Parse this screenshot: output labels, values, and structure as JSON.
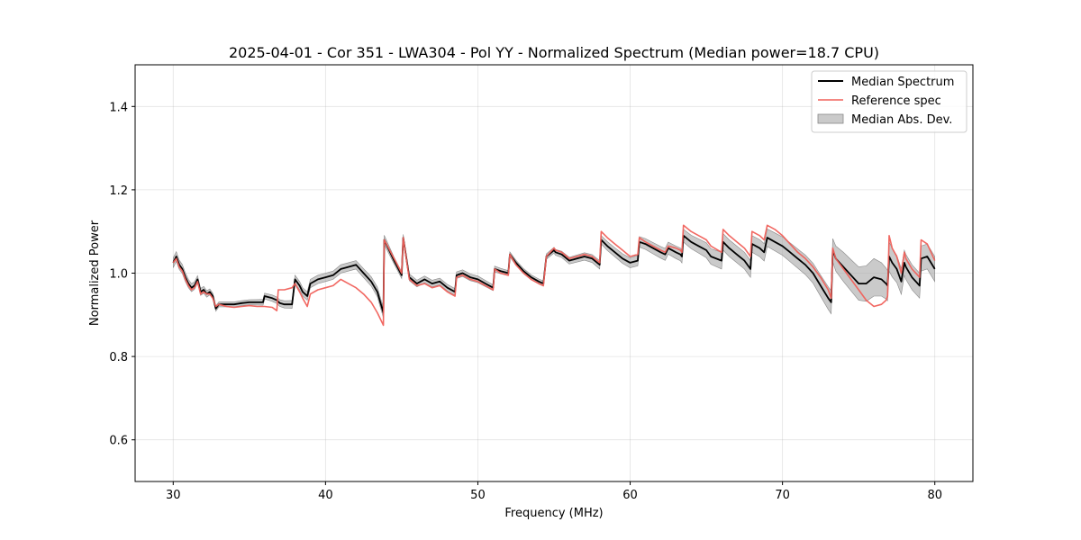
{
  "chart_data": {
    "type": "line",
    "title": "2025-04-01 - Cor 351 - LWA304 - Pol YY - Normalized Spectrum (Median power=18.7 CPU)",
    "xlabel": "Frequency (MHz)",
    "ylabel": "Normalized Power",
    "xlim": [
      27.5,
      82.5
    ],
    "ylim": [
      0.5,
      1.5
    ],
    "xticks": [
      30,
      40,
      50,
      60,
      70,
      80
    ],
    "yticks": [
      0.6,
      0.8,
      1.0,
      1.2,
      1.4
    ],
    "xtick_labels": [
      "30",
      "40",
      "50",
      "60",
      "70",
      "80"
    ],
    "ytick_labels": [
      "0.6",
      "0.8",
      "1.0",
      "1.2",
      "1.4"
    ],
    "grid": true,
    "legend_position": "top-right",
    "colors": {
      "median": "#000000",
      "reference": "#f0605a",
      "mad": "#a6a6a6"
    },
    "series": [
      {
        "name": "Median Spectrum",
        "x": [
          30.0,
          30.2,
          30.4,
          30.6,
          30.8,
          31.0,
          31.2,
          31.4,
          31.6,
          31.8,
          32.0,
          32.2,
          32.4,
          32.6,
          32.8,
          33.0,
          33.5,
          34.0,
          34.5,
          35.0,
          35.5,
          35.9,
          36.0,
          36.5,
          36.8,
          37.0,
          37.3,
          37.6,
          37.8,
          38.0,
          38.3,
          38.5,
          38.8,
          39.0,
          39.5,
          40.0,
          40.5,
          41.0,
          41.5,
          42.0,
          42.5,
          43.0,
          43.4,
          43.6,
          43.8,
          43.85,
          44.5,
          45.0,
          45.1,
          45.5,
          46.0,
          46.5,
          47.0,
          47.5,
          48.0,
          48.5,
          48.6,
          49.0,
          49.5,
          50.0,
          50.5,
          51.0,
          51.1,
          51.5,
          52.0,
          52.1,
          52.5,
          53.0,
          53.5,
          54.0,
          54.3,
          54.5,
          55.0,
          55.1,
          55.5,
          56.0,
          56.5,
          57.0,
          57.5,
          58.0,
          58.1,
          58.5,
          59.0,
          59.5,
          60.0,
          60.5,
          60.6,
          61.0,
          61.5,
          62.0,
          62.3,
          62.5,
          63.0,
          63.3,
          63.4,
          63.5,
          64.0,
          64.5,
          65.0,
          65.3,
          66.0,
          66.1,
          66.5,
          67.0,
          67.5,
          67.9,
          68.0,
          68.5,
          68.8,
          69.0,
          69.5,
          70.0,
          70.5,
          71.0,
          71.5,
          72.0,
          72.5,
          73.0,
          73.2,
          73.3,
          73.5,
          74.0,
          74.5,
          75.0,
          75.5,
          76.0,
          76.5,
          76.8,
          76.9,
          77.0,
          77.2,
          77.5,
          77.8,
          78.0,
          78.1,
          78.5,
          79.0,
          79.1,
          79.5,
          80.0
        ],
        "values": [
          1.025,
          1.04,
          1.02,
          1.01,
          0.99,
          0.975,
          0.965,
          0.97,
          0.985,
          0.955,
          0.96,
          0.95,
          0.955,
          0.945,
          0.915,
          0.925,
          0.925,
          0.925,
          0.928,
          0.93,
          0.93,
          0.93,
          0.945,
          0.94,
          0.935,
          0.928,
          0.925,
          0.925,
          0.925,
          0.985,
          0.97,
          0.955,
          0.945,
          0.975,
          0.985,
          0.99,
          0.995,
          1.01,
          1.015,
          1.02,
          1.0,
          0.98,
          0.955,
          0.93,
          0.905,
          1.08,
          1.03,
          0.995,
          1.085,
          0.99,
          0.975,
          0.985,
          0.975,
          0.98,
          0.965,
          0.955,
          0.995,
          1.0,
          0.99,
          0.985,
          0.975,
          0.965,
          1.01,
          1.005,
          1.0,
          1.045,
          1.025,
          1.005,
          0.99,
          0.98,
          0.975,
          1.04,
          1.055,
          1.05,
          1.045,
          1.03,
          1.035,
          1.04,
          1.035,
          1.02,
          1.08,
          1.065,
          1.05,
          1.035,
          1.025,
          1.03,
          1.075,
          1.07,
          1.06,
          1.05,
          1.045,
          1.06,
          1.05,
          1.045,
          1.04,
          1.09,
          1.075,
          1.065,
          1.055,
          1.04,
          1.03,
          1.075,
          1.06,
          1.045,
          1.03,
          1.01,
          1.07,
          1.06,
          1.05,
          1.085,
          1.075,
          1.065,
          1.05,
          1.035,
          1.02,
          1.0,
          0.97,
          0.94,
          0.93,
          1.055,
          1.035,
          1.015,
          0.995,
          0.975,
          0.975,
          0.99,
          0.985,
          0.975,
          0.97,
          1.04,
          1.025,
          1.01,
          0.98,
          1.025,
          1.015,
          0.99,
          0.97,
          1.035,
          1.04,
          1.01
        ]
      },
      {
        "name": "Reference spec",
        "x": [
          30.0,
          30.2,
          30.4,
          30.6,
          30.8,
          31.0,
          31.2,
          31.4,
          31.6,
          31.8,
          32.0,
          32.2,
          32.4,
          32.6,
          32.8,
          33.0,
          33.5,
          34.0,
          34.5,
          35.0,
          35.5,
          36.0,
          36.5,
          36.8,
          36.9,
          37.3,
          37.8,
          38.0,
          38.3,
          38.5,
          38.8,
          39.0,
          39.5,
          40.0,
          40.5,
          41.0,
          41.5,
          42.0,
          42.5,
          43.0,
          43.4,
          43.8,
          43.85,
          44.5,
          45.0,
          45.1,
          45.5,
          46.0,
          46.5,
          47.0,
          47.5,
          48.0,
          48.5,
          48.6,
          49.0,
          49.5,
          50.0,
          50.5,
          51.0,
          51.1,
          51.5,
          52.0,
          52.1,
          52.5,
          53.0,
          53.5,
          54.0,
          54.3,
          54.5,
          55.0,
          55.1,
          55.5,
          56.0,
          56.5,
          57.0,
          57.5,
          58.0,
          58.1,
          58.5,
          59.0,
          59.5,
          60.0,
          60.5,
          60.6,
          61.0,
          61.5,
          62.0,
          62.3,
          62.5,
          63.0,
          63.3,
          63.4,
          63.5,
          64.0,
          64.5,
          65.0,
          65.3,
          66.0,
          66.1,
          66.5,
          67.0,
          67.5,
          67.9,
          68.0,
          68.5,
          68.8,
          69.0,
          69.5,
          70.0,
          70.5,
          71.0,
          71.5,
          72.0,
          72.5,
          73.0,
          73.2,
          73.3,
          73.5,
          74.0,
          74.5,
          75.0,
          75.5,
          76.0,
          76.5,
          76.8,
          76.9,
          77.0,
          77.2,
          77.5,
          77.8,
          78.0,
          78.1,
          78.5,
          79.0,
          79.1,
          79.5,
          80.0
        ],
        "values": [
          1.025,
          1.035,
          1.015,
          1.005,
          0.985,
          0.97,
          0.96,
          0.965,
          0.98,
          0.95,
          0.955,
          0.95,
          0.95,
          0.94,
          0.92,
          0.925,
          0.92,
          0.918,
          0.92,
          0.922,
          0.92,
          0.92,
          0.918,
          0.91,
          0.96,
          0.96,
          0.965,
          0.975,
          0.955,
          0.94,
          0.92,
          0.95,
          0.96,
          0.965,
          0.97,
          0.985,
          0.975,
          0.965,
          0.95,
          0.93,
          0.905,
          0.875,
          1.08,
          1.035,
          1.0,
          1.085,
          0.985,
          0.97,
          0.975,
          0.965,
          0.97,
          0.955,
          0.945,
          0.99,
          0.995,
          0.985,
          0.98,
          0.97,
          0.96,
          1.01,
          1.0,
          0.995,
          1.045,
          1.02,
          1.0,
          0.985,
          0.975,
          0.97,
          1.04,
          1.06,
          1.055,
          1.05,
          1.035,
          1.04,
          1.045,
          1.04,
          1.025,
          1.1,
          1.085,
          1.07,
          1.055,
          1.04,
          1.045,
          1.085,
          1.075,
          1.065,
          1.055,
          1.05,
          1.065,
          1.06,
          1.055,
          1.05,
          1.115,
          1.1,
          1.09,
          1.08,
          1.065,
          1.05,
          1.105,
          1.09,
          1.075,
          1.06,
          1.04,
          1.1,
          1.09,
          1.08,
          1.115,
          1.105,
          1.09,
          1.07,
          1.05,
          1.035,
          1.015,
          0.99,
          0.96,
          0.94,
          1.06,
          1.035,
          1.01,
          0.985,
          0.96,
          0.935,
          0.92,
          0.925,
          0.935,
          0.945,
          1.09,
          1.06,
          1.04,
          1.0,
          1.05,
          1.035,
          1.01,
          0.99,
          1.08,
          1.07,
          1.03
        ]
      }
    ],
    "band": {
      "name": "Median Abs. Dev.",
      "x": [
        30.0,
        31.0,
        32.0,
        33.0,
        35.0,
        37.0,
        38.0,
        40.0,
        42.0,
        43.8,
        44.0,
        46.0,
        48.0,
        50.0,
        52.0,
        54.0,
        56.0,
        58.0,
        60.0,
        62.0,
        64.0,
        66.0,
        68.0,
        70.0,
        72.0,
        73.3,
        74.0,
        75.0,
        76.0,
        77.0,
        78.0,
        79.0,
        80.0
      ],
      "half_width": [
        0.012,
        0.01,
        0.008,
        0.006,
        0.006,
        0.008,
        0.01,
        0.01,
        0.01,
        0.012,
        0.008,
        0.008,
        0.008,
        0.008,
        0.006,
        0.006,
        0.008,
        0.01,
        0.012,
        0.014,
        0.016,
        0.02,
        0.02,
        0.022,
        0.024,
        0.028,
        0.035,
        0.04,
        0.045,
        0.035,
        0.03,
        0.03,
        0.03
      ]
    }
  }
}
